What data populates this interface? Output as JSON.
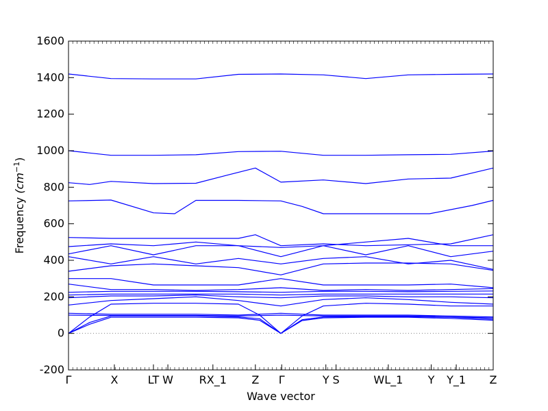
{
  "chart_data": {
    "type": "line",
    "xlabel": "Wave vector",
    "ylabel_text": "Frequency ",
    "ylabel_unit": "(cm",
    "ylabel_exp": "−1",
    "ylabel_close": ")",
    "ylim": [
      -200,
      1600
    ],
    "yticks": [
      -200,
      0,
      200,
      400,
      600,
      800,
      1000,
      1200,
      1400,
      1600
    ],
    "xlim": [
      0,
      1
    ],
    "kpoints": [
      {
        "label": "Γ",
        "x": 0.0
      },
      {
        "label": "X",
        "x": 0.108
      },
      {
        "label": "LT",
        "x": 0.2
      },
      {
        "label": "W",
        "x": 0.234
      },
      {
        "label": "RX_1",
        "x": 0.34
      },
      {
        "label": "Z",
        "x": 0.44
      },
      {
        "label": "Γ",
        "x": 0.502
      },
      {
        "label": "Y",
        "x": 0.606
      },
      {
        "label": "S",
        "x": 0.63
      },
      {
        "label": "WL_1",
        "x": 0.753
      },
      {
        "label": "Y",
        "x": 0.854
      },
      {
        "label": "Y_1",
        "x": 0.913
      },
      {
        "label": "Z",
        "x": 1.0
      }
    ],
    "line_color": "#0000ff",
    "zero_line_color": "#808080",
    "series": [
      {
        "x": [
          0,
          0.1,
          0.2,
          0.3,
          0.4,
          0.5,
          0.6,
          0.7,
          0.8,
          0.9,
          1.0
        ],
        "y": [
          1420,
          1395,
          1393,
          1393,
          1418,
          1420,
          1415,
          1395,
          1415,
          1418,
          1420
        ]
      },
      {
        "x": [
          0,
          0.1,
          0.2,
          0.3,
          0.4,
          0.5,
          0.6,
          0.7,
          0.8,
          0.9,
          1.0
        ],
        "y": [
          1000,
          975,
          975,
          978,
          995,
          997,
          975,
          975,
          978,
          980,
          998
        ]
      },
      {
        "x": [
          0,
          0.05,
          0.1,
          0.2,
          0.3,
          0.38,
          0.44,
          0.5,
          0.6,
          0.7,
          0.8,
          0.9,
          1.0
        ],
        "y": [
          825,
          815,
          832,
          820,
          822,
          870,
          905,
          828,
          840,
          820,
          845,
          850,
          905
        ]
      },
      {
        "x": [
          0,
          0.1,
          0.2,
          0.25,
          0.3,
          0.4,
          0.5,
          0.55,
          0.6,
          0.7,
          0.85,
          0.95,
          1.0
        ],
        "y": [
          725,
          730,
          660,
          655,
          728,
          728,
          725,
          695,
          655,
          655,
          655,
          700,
          728
        ]
      },
      {
        "x": [
          0,
          0.1,
          0.2,
          0.3,
          0.4,
          0.44,
          0.5,
          0.6,
          0.7,
          0.8,
          0.9,
          1.0
        ],
        "y": [
          525,
          520,
          520,
          520,
          520,
          540,
          480,
          490,
          480,
          485,
          490,
          540
        ]
      },
      {
        "x": [
          0,
          0.1,
          0.2,
          0.3,
          0.4,
          0.5,
          0.6,
          0.7,
          0.8,
          0.9,
          1.0
        ],
        "y": [
          475,
          490,
          480,
          500,
          480,
          470,
          480,
          500,
          520,
          480,
          480
        ]
      },
      {
        "x": [
          0,
          0.1,
          0.2,
          0.3,
          0.4,
          0.5,
          0.6,
          0.7,
          0.8,
          0.9,
          1.0
        ],
        "y": [
          435,
          480,
          430,
          480,
          480,
          420,
          480,
          430,
          480,
          420,
          450
        ]
      },
      {
        "x": [
          0,
          0.1,
          0.2,
          0.3,
          0.4,
          0.5,
          0.6,
          0.7,
          0.8,
          0.9,
          1.0
        ],
        "y": [
          420,
          380,
          420,
          380,
          410,
          380,
          410,
          420,
          380,
          400,
          350
        ]
      },
      {
        "x": [
          0,
          0.1,
          0.2,
          0.3,
          0.4,
          0.5,
          0.6,
          0.7,
          0.8,
          0.9,
          1.0
        ],
        "y": [
          340,
          370,
          380,
          370,
          360,
          320,
          380,
          385,
          385,
          380,
          345
        ]
      },
      {
        "x": [
          0,
          0.1,
          0.2,
          0.3,
          0.4,
          0.5,
          0.6,
          0.7,
          0.8,
          0.9,
          1.0
        ],
        "y": [
          300,
          300,
          265,
          265,
          265,
          300,
          265,
          265,
          265,
          270,
          250
        ]
      },
      {
        "x": [
          0,
          0.1,
          0.2,
          0.3,
          0.4,
          0.5,
          0.6,
          0.7,
          0.8,
          0.9,
          1.0
        ],
        "y": [
          270,
          240,
          240,
          235,
          240,
          250,
          235,
          240,
          235,
          240,
          245
        ]
      },
      {
        "x": [
          0,
          0.1,
          0.2,
          0.3,
          0.4,
          0.5,
          0.6,
          0.7,
          0.8,
          0.9,
          1.0
        ],
        "y": [
          225,
          230,
          230,
          230,
          228,
          225,
          230,
          230,
          228,
          230,
          232
        ]
      },
      {
        "x": [
          0,
          0.1,
          0.2,
          0.3,
          0.4,
          0.5,
          0.6,
          0.7,
          0.8,
          0.9,
          1.0
        ],
        "y": [
          210,
          215,
          215,
          215,
          215,
          210,
          215,
          215,
          215,
          215,
          215
        ]
      },
      {
        "x": [
          0,
          0.1,
          0.2,
          0.3,
          0.4,
          0.5,
          0.6,
          0.7,
          0.8,
          0.9,
          1.0
        ],
        "y": [
          195,
          205,
          205,
          210,
          200,
          195,
          205,
          205,
          200,
          200,
          195
        ]
      },
      {
        "x": [
          0,
          0.1,
          0.2,
          0.3,
          0.4,
          0.5,
          0.6,
          0.7,
          0.8,
          0.9,
          1.0
        ],
        "y": [
          155,
          180,
          190,
          200,
          180,
          150,
          185,
          195,
          185,
          170,
          160
        ]
      },
      {
        "x": [
          0,
          0.05,
          0.1,
          0.2,
          0.3,
          0.4,
          0.45,
          0.5,
          0.55,
          0.6,
          0.7,
          0.8,
          0.9,
          1.0
        ],
        "y": [
          0,
          90,
          160,
          165,
          165,
          160,
          100,
          0,
          95,
          150,
          165,
          160,
          150,
          150
        ]
      },
      {
        "x": [
          0,
          0.1,
          0.2,
          0.3,
          0.4,
          0.5,
          0.6,
          0.7,
          0.8,
          0.9,
          1.0
        ],
        "y": [
          110,
          105,
          105,
          105,
          100,
          110,
          100,
          100,
          100,
          95,
          90
        ]
      },
      {
        "x": [
          0,
          0.1,
          0.2,
          0.3,
          0.4,
          0.5,
          0.6,
          0.7,
          0.8,
          0.9,
          1.0
        ],
        "y": [
          100,
          98,
          98,
          98,
          95,
          100,
          95,
          95,
          95,
          90,
          85
        ]
      },
      {
        "x": [
          0,
          0.05,
          0.1,
          0.2,
          0.3,
          0.4,
          0.45,
          0.5,
          0.55,
          0.6,
          0.7,
          0.8,
          0.9,
          1.0
        ],
        "y": [
          0,
          60,
          95,
          95,
          95,
          90,
          80,
          0,
          75,
          90,
          92,
          92,
          88,
          78
        ]
      },
      {
        "x": [
          0,
          0.05,
          0.1,
          0.2,
          0.3,
          0.4,
          0.45,
          0.5,
          0.55,
          0.6,
          0.7,
          0.8,
          0.9,
          1.0
        ],
        "y": [
          0,
          50,
          88,
          88,
          88,
          85,
          72,
          0,
          70,
          85,
          88,
          88,
          82,
          72
        ]
      }
    ]
  }
}
